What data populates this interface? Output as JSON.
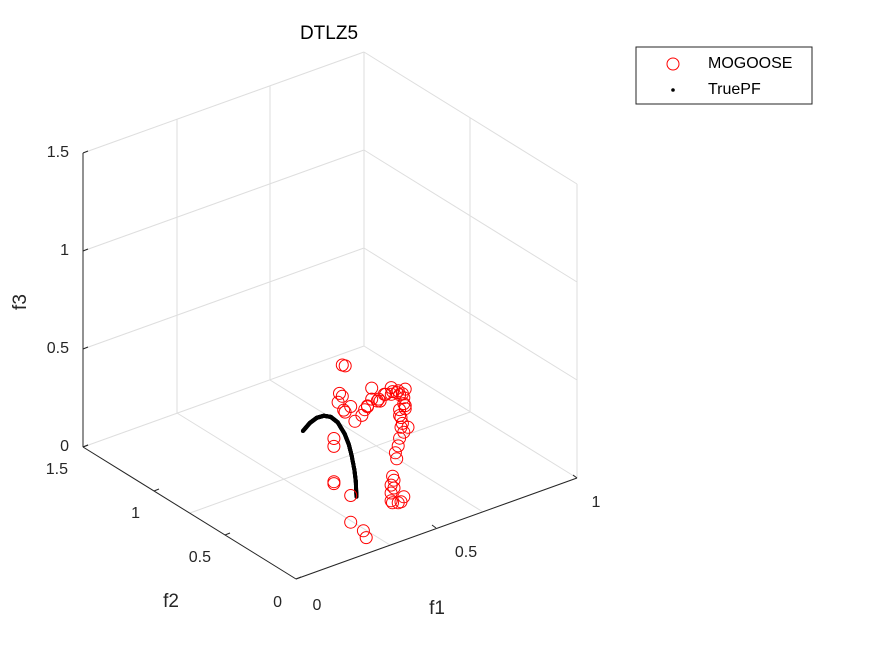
{
  "chart_data": {
    "type": "scatter",
    "title": "DTLZ5",
    "xlabel": "f1",
    "ylabel": "f2",
    "zlabel": "f3",
    "xlim": [
      0,
      1
    ],
    "ylim": [
      0,
      1.5
    ],
    "zlim": [
      0,
      1.5
    ],
    "x_ticks": [
      "0",
      "0.5",
      "1"
    ],
    "y_ticks": [
      "0",
      "0.5",
      "1",
      "1.5"
    ],
    "z_ticks": [
      "0",
      "0.5",
      "1",
      "1.5"
    ],
    "grid": true,
    "legend_position": "top-right",
    "series": [
      {
        "name": "MOGOOSE",
        "marker": "open-circle",
        "color": "#ff0000",
        "points": [
          [
            0.17,
            0.01,
            1.0
          ],
          [
            0.18,
            0.01,
            0.99
          ],
          [
            0.16,
            0.01,
            0.86
          ],
          [
            0.17,
            0.01,
            0.84
          ],
          [
            0.16,
            0.02,
            0.81
          ],
          [
            0.18,
            0.02,
            0.76
          ],
          [
            0.19,
            0.03,
            0.74
          ],
          [
            0.14,
            0.01,
            0.64
          ],
          [
            0.14,
            0.01,
            0.6
          ],
          [
            0.14,
            0.01,
            0.42
          ],
          [
            0.14,
            0.01,
            0.41
          ],
          [
            0.22,
            0.05,
            0.29
          ],
          [
            0.23,
            0.07,
            0.14
          ],
          [
            0.27,
            0.06,
            0.08
          ],
          [
            0.28,
            0.06,
            0.04
          ],
          [
            0.23,
            0.07,
            0.73
          ],
          [
            0.25,
            0.08,
            0.64
          ],
          [
            0.28,
            0.09,
            0.65
          ],
          [
            0.3,
            0.11,
            0.66
          ],
          [
            0.31,
            0.11,
            0.67
          ],
          [
            0.33,
            0.12,
            0.75
          ],
          [
            0.32,
            0.13,
            0.66
          ],
          [
            0.34,
            0.14,
            0.68
          ],
          [
            0.36,
            0.14,
            0.66
          ],
          [
            0.37,
            0.15,
            0.66
          ],
          [
            0.38,
            0.16,
            0.64
          ],
          [
            0.4,
            0.17,
            0.66
          ],
          [
            0.41,
            0.18,
            0.65
          ],
          [
            0.43,
            0.18,
            0.64
          ],
          [
            0.44,
            0.2,
            0.66
          ],
          [
            0.45,
            0.21,
            0.63
          ],
          [
            0.47,
            0.22,
            0.61
          ],
          [
            0.48,
            0.23,
            0.61
          ],
          [
            0.49,
            0.24,
            0.58
          ],
          [
            0.5,
            0.24,
            0.58
          ],
          [
            0.51,
            0.25,
            0.55
          ],
          [
            0.51,
            0.25,
            0.52
          ],
          [
            0.52,
            0.26,
            0.5
          ],
          [
            0.5,
            0.26,
            0.49
          ],
          [
            0.5,
            0.26,
            0.46
          ],
          [
            0.51,
            0.27,
            0.44
          ],
          [
            0.51,
            0.27,
            0.39
          ],
          [
            0.52,
            0.27,
            0.36
          ],
          [
            0.51,
            0.28,
            0.33
          ],
          [
            0.5,
            0.27,
            0.3
          ],
          [
            0.49,
            0.27,
            0.27
          ],
          [
            0.5,
            0.28,
            0.23
          ],
          [
            0.47,
            0.25,
            0.17
          ],
          [
            0.48,
            0.26,
            0.14
          ],
          [
            0.47,
            0.26,
            0.12
          ],
          [
            0.48,
            0.26,
            0.1
          ],
          [
            0.47,
            0.26,
            0.08
          ],
          [
            0.47,
            0.26,
            0.04
          ],
          [
            0.48,
            0.27,
            0.02
          ],
          [
            0.5,
            0.27,
            0.01
          ],
          [
            0.51,
            0.27,
            0.01
          ],
          [
            0.52,
            0.27,
            0.03
          ],
          [
            0.53,
            0.28,
            0.57
          ],
          [
            0.52,
            0.28,
            0.4
          ],
          [
            0.54,
            0.28,
            0.37
          ],
          [
            0.53,
            0.28,
            0.47
          ]
        ]
      },
      {
        "name": "TruePF",
        "marker": "dot",
        "color": "#000000",
        "points": [
          [
            0.05,
            0.05,
            0.707
          ],
          [
            0.1,
            0.1,
            0.7
          ],
          [
            0.15,
            0.15,
            0.678
          ],
          [
            0.2,
            0.2,
            0.64
          ],
          [
            0.25,
            0.25,
            0.586
          ],
          [
            0.3,
            0.3,
            0.51
          ],
          [
            0.35,
            0.35,
            0.403
          ],
          [
            0.38,
            0.38,
            0.32
          ],
          [
            0.4,
            0.4,
            0.245
          ],
          [
            0.42,
            0.42,
            0.152
          ],
          [
            0.43,
            0.43,
            0.085
          ],
          [
            0.435,
            0.435,
            0.0
          ]
        ]
      }
    ]
  }
}
